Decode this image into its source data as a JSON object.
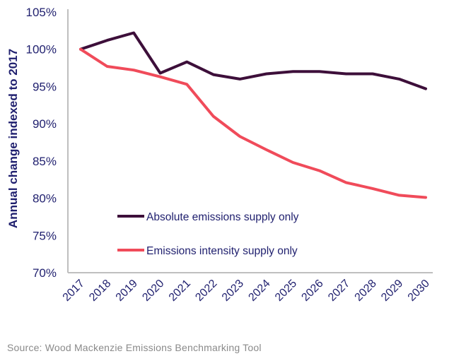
{
  "chart_data": {
    "type": "line",
    "title": "",
    "xlabel": "",
    "ylabel": "Annual change indexed to 2017",
    "ylim": [
      70,
      105
    ],
    "y_ticks": [
      "70%",
      "75%",
      "80%",
      "85%",
      "90%",
      "95%",
      "100%",
      "105%"
    ],
    "y_tick_values": [
      70,
      75,
      80,
      85,
      90,
      95,
      100,
      105
    ],
    "x": [
      "2017",
      "2018",
      "2019",
      "2020",
      "2021",
      "2022",
      "2023",
      "2024",
      "2025",
      "2026",
      "2027",
      "2028",
      "2029",
      "2030"
    ],
    "grid": false,
    "legend_position": "bottom-left-inside",
    "series": [
      {
        "name": "Absolute emissions supply only",
        "color": "#3d0f3a",
        "values": [
          100,
          101.2,
          102.2,
          96.8,
          98.3,
          96.6,
          96.0,
          96.7,
          97.0,
          97.0,
          96.7,
          96.7,
          96.0,
          94.7
        ]
      },
      {
        "name": "Emissions intensity supply only",
        "color": "#f04b5a",
        "values": [
          100,
          97.7,
          97.2,
          96.3,
          95.3,
          91.0,
          88.3,
          86.5,
          84.8,
          83.7,
          82.1,
          81.3,
          80.4,
          80.1
        ]
      }
    ]
  },
  "source": "Source: Wood Mackenzie Emissions Benchmarking Tool"
}
